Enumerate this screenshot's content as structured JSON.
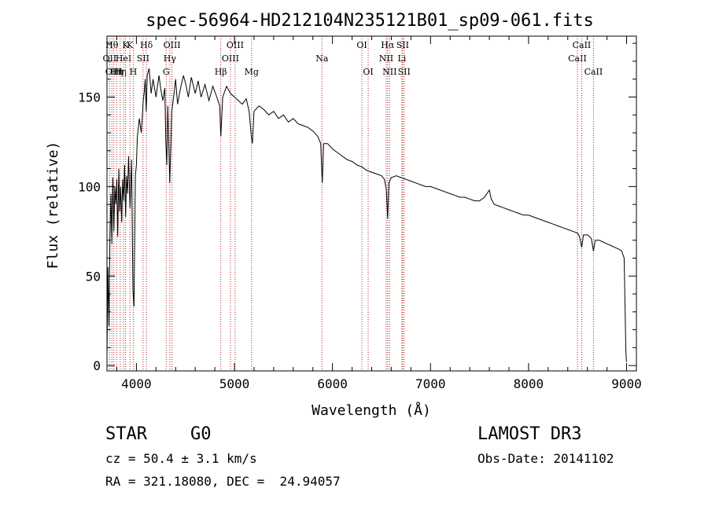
{
  "chart_data": {
    "type": "line",
    "title": "spec-56964-HD212104N235121B01_sp09-061.fits",
    "xlabel": "Wavelength (Å)",
    "ylabel": "Flux (relative)",
    "xlim": [
      3700,
      9100
    ],
    "ylim": [
      -3,
      184
    ],
    "xticks": [
      4000,
      5000,
      6000,
      7000,
      8000,
      9000
    ],
    "yticks": [
      0,
      50,
      100,
      150
    ],
    "x_minor_step": 200,
    "y_minor_step": 10,
    "series": [
      {
        "name": "spectrum",
        "points": [
          [
            3700,
            5
          ],
          [
            3710,
            55
          ],
          [
            3720,
            22
          ],
          [
            3730,
            70
          ],
          [
            3740,
            96
          ],
          [
            3750,
            68
          ],
          [
            3760,
            105
          ],
          [
            3770,
            75
          ],
          [
            3780,
            100
          ],
          [
            3790,
            90
          ],
          [
            3800,
            104
          ],
          [
            3810,
            72
          ],
          [
            3820,
            110
          ],
          [
            3830,
            86
          ],
          [
            3840,
            100
          ],
          [
            3850,
            80
          ],
          [
            3860,
            104
          ],
          [
            3870,
            92
          ],
          [
            3880,
            112
          ],
          [
            3890,
            83
          ],
          [
            3900,
            106
          ],
          [
            3910,
            96
          ],
          [
            3920,
            117
          ],
          [
            3935,
            88
          ],
          [
            3950,
            115
          ],
          [
            3965,
            42
          ],
          [
            3975,
            33
          ],
          [
            3990,
            106
          ],
          [
            4000,
            112
          ],
          [
            4010,
            128
          ],
          [
            4030,
            138
          ],
          [
            4050,
            130
          ],
          [
            4070,
            148
          ],
          [
            4080,
            153
          ],
          [
            4090,
            160
          ],
          [
            4100,
            142
          ],
          [
            4110,
            162
          ],
          [
            4130,
            166
          ],
          [
            4150,
            152
          ],
          [
            4170,
            160
          ],
          [
            4200,
            150
          ],
          [
            4230,
            162
          ],
          [
            4250,
            154
          ],
          [
            4270,
            148
          ],
          [
            4290,
            155
          ],
          [
            4300,
            125
          ],
          [
            4310,
            112
          ],
          [
            4320,
            145
          ],
          [
            4340,
            102
          ],
          [
            4360,
            142
          ],
          [
            4380,
            150
          ],
          [
            4400,
            160
          ],
          [
            4420,
            146
          ],
          [
            4450,
            155
          ],
          [
            4480,
            162
          ],
          [
            4500,
            158
          ],
          [
            4530,
            150
          ],
          [
            4560,
            161
          ],
          [
            4600,
            152
          ],
          [
            4630,
            159
          ],
          [
            4660,
            150
          ],
          [
            4700,
            157
          ],
          [
            4740,
            148
          ],
          [
            4780,
            156
          ],
          [
            4820,
            150
          ],
          [
            4850,
            145
          ],
          [
            4861,
            128
          ],
          [
            4880,
            150
          ],
          [
            4920,
            156
          ],
          [
            4960,
            152
          ],
          [
            5000,
            150
          ],
          [
            5040,
            148
          ],
          [
            5080,
            146
          ],
          [
            5120,
            149
          ],
          [
            5150,
            142
          ],
          [
            5172,
            128
          ],
          [
            5183,
            124
          ],
          [
            5200,
            142
          ],
          [
            5250,
            145
          ],
          [
            5300,
            143
          ],
          [
            5350,
            140
          ],
          [
            5400,
            142
          ],
          [
            5450,
            138
          ],
          [
            5500,
            140
          ],
          [
            5550,
            136
          ],
          [
            5600,
            138
          ],
          [
            5650,
            135
          ],
          [
            5700,
            134
          ],
          [
            5750,
            133
          ],
          [
            5800,
            131
          ],
          [
            5850,
            128
          ],
          [
            5880,
            124
          ],
          [
            5890,
            110
          ],
          [
            5896,
            102
          ],
          [
            5910,
            124
          ],
          [
            5950,
            124
          ],
          [
            6000,
            121
          ],
          [
            6050,
            119
          ],
          [
            6100,
            117
          ],
          [
            6150,
            115
          ],
          [
            6200,
            114
          ],
          [
            6250,
            112
          ],
          [
            6300,
            111
          ],
          [
            6350,
            109
          ],
          [
            6400,
            108
          ],
          [
            6450,
            107
          ],
          [
            6500,
            106
          ],
          [
            6530,
            104
          ],
          [
            6550,
            98
          ],
          [
            6563,
            82
          ],
          [
            6575,
            102
          ],
          [
            6600,
            105
          ],
          [
            6650,
            106
          ],
          [
            6700,
            105
          ],
          [
            6750,
            104
          ],
          [
            6800,
            103
          ],
          [
            6850,
            102
          ],
          [
            6900,
            101
          ],
          [
            6950,
            100
          ],
          [
            7000,
            100
          ],
          [
            7050,
            99
          ],
          [
            7100,
            98
          ],
          [
            7150,
            97
          ],
          [
            7200,
            96
          ],
          [
            7250,
            95
          ],
          [
            7300,
            94
          ],
          [
            7350,
            94
          ],
          [
            7400,
            93
          ],
          [
            7450,
            92
          ],
          [
            7500,
            92
          ],
          [
            7550,
            94
          ],
          [
            7600,
            98
          ],
          [
            7620,
            93
          ],
          [
            7650,
            90
          ],
          [
            7700,
            89
          ],
          [
            7750,
            88
          ],
          [
            7800,
            87
          ],
          [
            7850,
            86
          ],
          [
            7900,
            85
          ],
          [
            7950,
            84
          ],
          [
            8000,
            84
          ],
          [
            8050,
            83
          ],
          [
            8100,
            82
          ],
          [
            8150,
            81
          ],
          [
            8200,
            80
          ],
          [
            8250,
            79
          ],
          [
            8300,
            78
          ],
          [
            8350,
            77
          ],
          [
            8400,
            76
          ],
          [
            8450,
            75
          ],
          [
            8500,
            74
          ],
          [
            8520,
            72
          ],
          [
            8542,
            66
          ],
          [
            8560,
            73
          ],
          [
            8600,
            73
          ],
          [
            8640,
            71
          ],
          [
            8662,
            64
          ],
          [
            8680,
            70
          ],
          [
            8720,
            70
          ],
          [
            8760,
            69
          ],
          [
            8800,
            68
          ],
          [
            8840,
            67
          ],
          [
            8880,
            66
          ],
          [
            8920,
            65
          ],
          [
            8950,
            64
          ],
          [
            8975,
            60
          ],
          [
            8985,
            30
          ],
          [
            8992,
            10
          ],
          [
            8998,
            2
          ]
        ]
      }
    ],
    "lines": [
      {
        "wl": 3727,
        "label": "OII",
        "row": 2
      },
      {
        "wl": 3750,
        "label": "Hθ",
        "row": 1
      },
      {
        "wl": 3770,
        "label": "OIII",
        "row": 3
      },
      {
        "wl": 3798,
        "label": "Hη",
        "row": 3
      },
      {
        "wl": 3835,
        "label": "Hη",
        "row": 3
      },
      {
        "wl": 3869,
        "label": "HeI",
        "row": 2
      },
      {
        "wl": 3889,
        "label": "K",
        "row": 1
      },
      {
        "wl": 3934,
        "label": "K",
        "row": 1
      },
      {
        "wl": 3968,
        "label": "H",
        "row": 3
      },
      {
        "wl": 4068,
        "label": "SII",
        "row": 2
      },
      {
        "wl": 4102,
        "label": "Hδ",
        "row": 1
      },
      {
        "wl": 4304,
        "label": "G",
        "row": 3
      },
      {
        "wl": 4341,
        "label": "Hγ",
        "row": 2
      },
      {
        "wl": 4363,
        "label": "OIII",
        "row": 1
      },
      {
        "wl": 4861,
        "label": "Hβ",
        "row": 3
      },
      {
        "wl": 4959,
        "label": "OIII",
        "row": 2
      },
      {
        "wl": 5007,
        "label": "OIII",
        "row": 1
      },
      {
        "wl": 5175,
        "label": "Mg",
        "row": 3
      },
      {
        "wl": 5893,
        "label": "Na",
        "row": 2
      },
      {
        "wl": 6300,
        "label": "OI",
        "row": 1
      },
      {
        "wl": 6364,
        "label": "OI",
        "row": 3
      },
      {
        "wl": 6548,
        "label": "NII",
        "row": 2
      },
      {
        "wl": 6563,
        "label": "Hα",
        "row": 1
      },
      {
        "wl": 6583,
        "label": "NII",
        "row": 3
      },
      {
        "wl": 6708,
        "label": "Li",
        "row": 2
      },
      {
        "wl": 6716,
        "label": "SII",
        "row": 1
      },
      {
        "wl": 6731,
        "label": "SII",
        "row": 3
      },
      {
        "wl": 8498,
        "label": "CaII",
        "row": 2
      },
      {
        "wl": 8542,
        "label": "CaII",
        "row": 1
      },
      {
        "wl": 8662,
        "label": "CaII",
        "row": 3
      }
    ],
    "line_color": "#b22222"
  },
  "info": {
    "object_class": "STAR",
    "subclass": "G0",
    "survey": "LAMOST DR3",
    "cz": "cz = 50.4 ± 3.1 km/s",
    "obs_date": "Obs-Date: 20141102",
    "coords": "RA = 321.18080, DEC =  24.94057"
  }
}
